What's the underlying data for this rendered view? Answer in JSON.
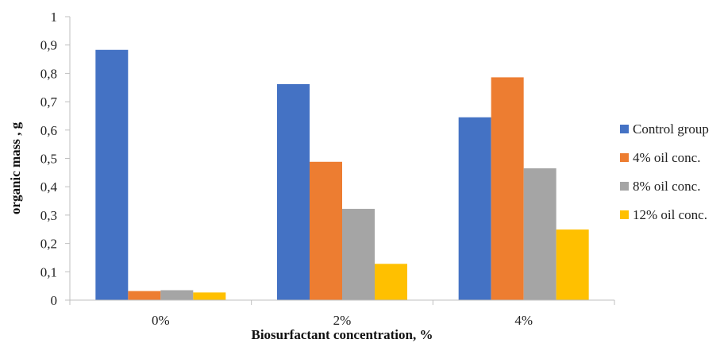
{
  "chart_data": {
    "type": "bar",
    "title": "",
    "xlabel": "Biosurfactant concentration, %",
    "ylabel": "organic mass , g",
    "categories": [
      "0%",
      "2%",
      "4%"
    ],
    "series": [
      {
        "name": "Control group",
        "color": "#4472C4",
        "values": [
          0.883,
          0.762,
          0.645
        ]
      },
      {
        "name": "4% oil conc.",
        "color": "#ED7D31",
        "values": [
          0.032,
          0.488,
          0.786
        ]
      },
      {
        "name": "8% oil conc.",
        "color": "#A5A5A5",
        "values": [
          0.035,
          0.322,
          0.465
        ]
      },
      {
        "name": "12% oil conc.",
        "color": "#FFC000",
        "values": [
          0.027,
          0.128,
          0.249
        ]
      }
    ],
    "ylim": [
      0,
      1
    ],
    "yticks": [
      "0",
      "0,1",
      "0,2",
      "0,3",
      "0,4",
      "0,5",
      "0,6",
      "0,7",
      "0,8",
      "0,9",
      "1"
    ],
    "grid": false,
    "legend_position": "right"
  }
}
